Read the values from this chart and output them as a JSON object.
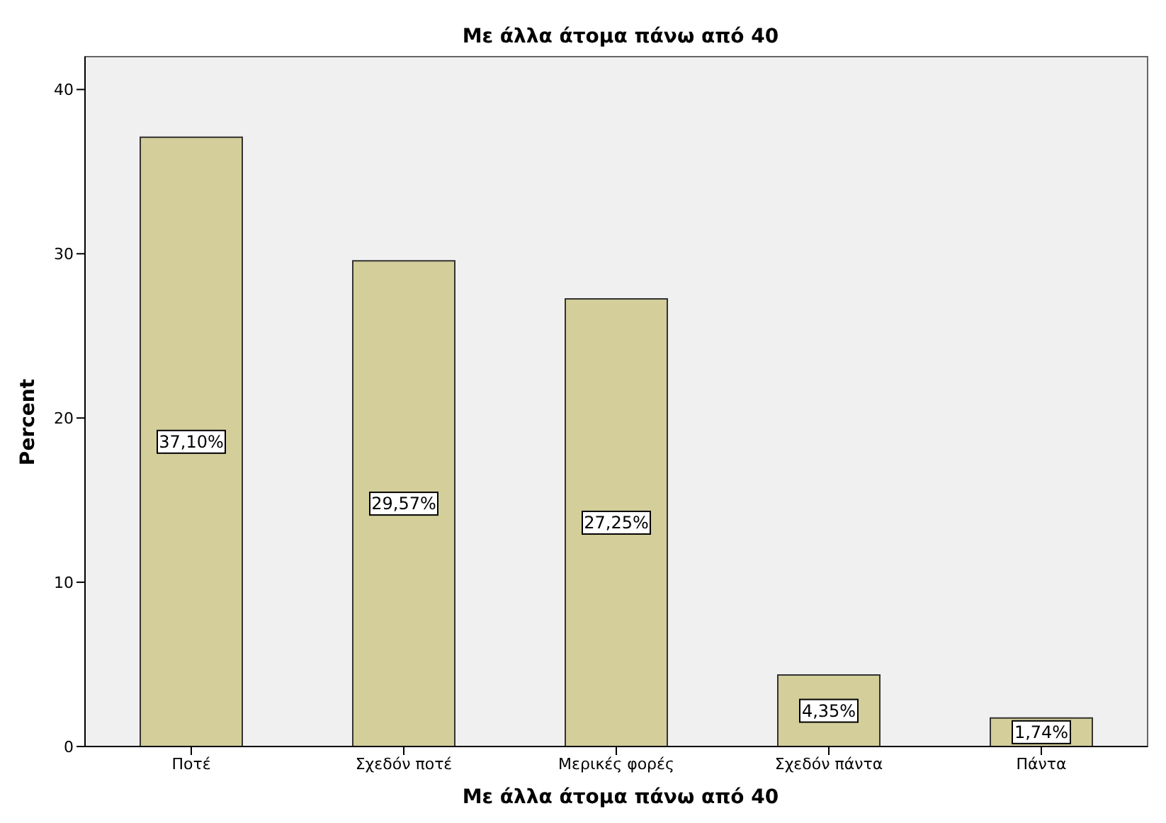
{
  "chart_data": {
    "type": "bar",
    "title": "Με άλλα άτομα πάνω από 40",
    "xlabel": "Με άλλα άτομα πάνω από 40",
    "ylabel": "Percent",
    "categories": [
      "Ποτέ",
      "Σχεδόν ποτέ",
      "Μερικές φορές",
      "Σχεδόν πάντα",
      "Πάντα"
    ],
    "values": [
      37.1,
      29.57,
      27.25,
      4.35,
      1.74
    ],
    "value_labels": [
      "37,10%",
      "29,57%",
      "27,25%",
      "4,35%",
      "1,74%"
    ],
    "color": "#d3ce9a",
    "ylim": [
      0,
      42
    ],
    "yticks": [
      0,
      10,
      20,
      30,
      40
    ]
  }
}
